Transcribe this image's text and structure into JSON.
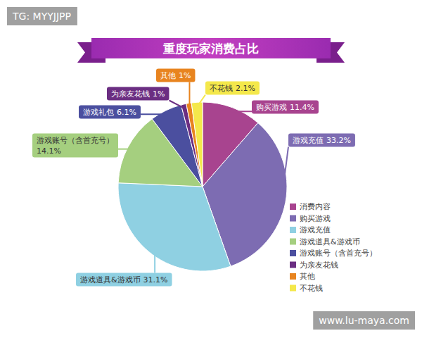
{
  "chart_data": {
    "type": "pie",
    "title": "重度玩家消费占比",
    "categories": [
      "购买游戏",
      "游戏充值",
      "游戏道具&游戏币",
      "游戏账号（含首充号）",
      "游戏礼包",
      "为亲友花钱",
      "其他",
      "不花钱"
    ],
    "values": [
      11.4,
      33.2,
      31.1,
      14.1,
      6.1,
      1,
      1,
      2.1
    ],
    "value_labels": [
      "11.4%",
      "33.2%",
      "31.1%",
      "14.1%",
      "6.1%",
      "1%",
      "1%",
      "2.1%"
    ],
    "colors": [
      "#a8448f",
      "#7d6cb2",
      "#8fd0e2",
      "#a5cf7f",
      "#4b4f9f",
      "#6b2e82",
      "#e8841f",
      "#f4e84b"
    ],
    "data_labels": true,
    "legend": "lower right",
    "legend_labels": [
      "消费内容",
      "购买游戏",
      "游戏充值",
      "游戏道具&游戏币",
      "游戏账号（含首充号）",
      "为亲友花钱",
      "其他",
      "不花钱"
    ],
    "annotations": [
      "TG: MYYJJPP",
      "www.lu-maya.com"
    ]
  }
}
